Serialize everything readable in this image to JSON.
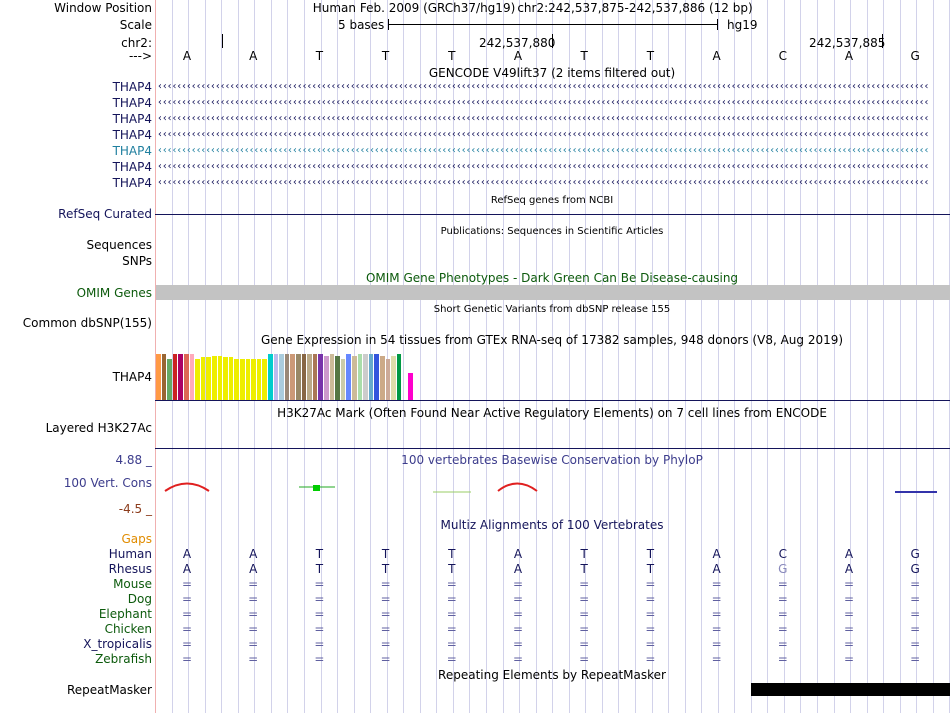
{
  "labels": {
    "window_position": "Window Position",
    "scale": "Scale",
    "chr": "chr2:",
    "seq_arrow": "--->",
    "refseq": "RefSeq Curated",
    "sequences": "Sequences",
    "snps": "SNPs",
    "omim": "OMIM Genes",
    "dbsnp": "Common dbSNP(155)",
    "gtex_gene": "THAP4",
    "h3k27ac": "Layered H3K27Ac",
    "cons": "100 Vert. Cons",
    "cons_max": "4.88 _",
    "cons_min": "-4.5 _",
    "repeatmasker": "RepeatMasker"
  },
  "header": {
    "assembly": "Human Feb. 2009 (GRCh37/hg19)",
    "position": "chr2:242,537,875-242,537,886 (12 bp)",
    "scale_text": "5 bases",
    "scale_db": "hg19",
    "coord1": "242,537,880",
    "coord2": "242,537,885"
  },
  "bases": [
    "A",
    "A",
    "T",
    "T",
    "T",
    "A",
    "T",
    "T",
    "A",
    "C",
    "A",
    "G"
  ],
  "rhesus": [
    "A",
    "A",
    "T",
    "T",
    "T",
    "A",
    "T",
    "T",
    "A",
    "G",
    "A",
    "G"
  ],
  "tracks": {
    "gencode_title": "GENCODE V49lift37 (2 items filtered out)",
    "gencode_items": [
      "THAP4",
      "THAP4",
      "THAP4",
      "THAP4",
      "THAP4",
      "THAP4",
      "THAP4"
    ],
    "refseq_title": "RefSeq genes from NCBI",
    "publications_title": "Publications: Sequences in Scientific Articles",
    "omim_title": "OMIM Gene Phenotypes - Dark Green Can Be Disease-causing",
    "dbsnp_title": "Short Genetic Variants from dbSNP release 155",
    "gtex_title": "Gene Expression in 54 tissues from GTEx RNA-seq of 17382 samples, 948 donors (V8, Aug 2019)",
    "h3k27ac_title": "H3K27Ac Mark (Often Found Near Active Regulatory Elements) on 7 cell lines from ENCODE",
    "cons_title": "100 vertebrates Basewise Conservation by PhyloP",
    "multiz_title": "Multiz Alignments of 100 Vertebrates",
    "repeat_title": "Repeating Elements by RepeatMasker"
  },
  "multiz": {
    "gaps_label": "Gaps",
    "species": [
      "Human",
      "Rhesus",
      "Mouse",
      "Dog",
      "Elephant",
      "Chicken",
      "X_tropicalis",
      "Zebrafish"
    ],
    "gap_symbol": "="
  },
  "gtex_colors": [
    "#ff9944",
    "#996633",
    "#66aa66",
    "#cc2222",
    "#aa0066",
    "#dd6655",
    "#ffaabb",
    "#eeee00",
    "#eeee00",
    "#eeee00",
    "#eeee00",
    "#eeee00",
    "#eeee00",
    "#eeee00",
    "#eeee00",
    "#eeee00",
    "#eeee00",
    "#eeee00",
    "#eeee00",
    "#eeee00",
    "#00cccc",
    "#bbbbee",
    "#aaccdd",
    "#998877",
    "#cc9977",
    "#998866",
    "#886644",
    "#bbaa88",
    "#aa7755",
    "#7733aa",
    "#cc99cc",
    "#ccbb99",
    "#557744",
    "#ccccaa",
    "#6688ff",
    "#ccbb99",
    "#aaddaa",
    "#cccccc",
    "#66aacc",
    "#3355dd",
    "#ccaa88",
    "#ccaa99",
    "#ddddaa",
    "#009944",
    "#ffffff",
    "#ff00cc"
  ],
  "gtex_values": [
    0.93,
    0.93,
    0.82,
    0.93,
    0.93,
    0.93,
    0.93,
    0.82,
    0.86,
    0.86,
    0.89,
    0.89,
    0.86,
    0.86,
    0.82,
    0.82,
    0.82,
    0.82,
    0.82,
    0.82,
    0.93,
    0.93,
    0.93,
    0.93,
    0.93,
    0.93,
    0.93,
    0.93,
    0.93,
    0.93,
    0.89,
    0.93,
    0.89,
    0.82,
    0.93,
    0.89,
    0.93,
    0.93,
    0.93,
    0.93,
    0.89,
    0.82,
    0.89,
    0.93,
    0.0,
    0.55
  ]
}
